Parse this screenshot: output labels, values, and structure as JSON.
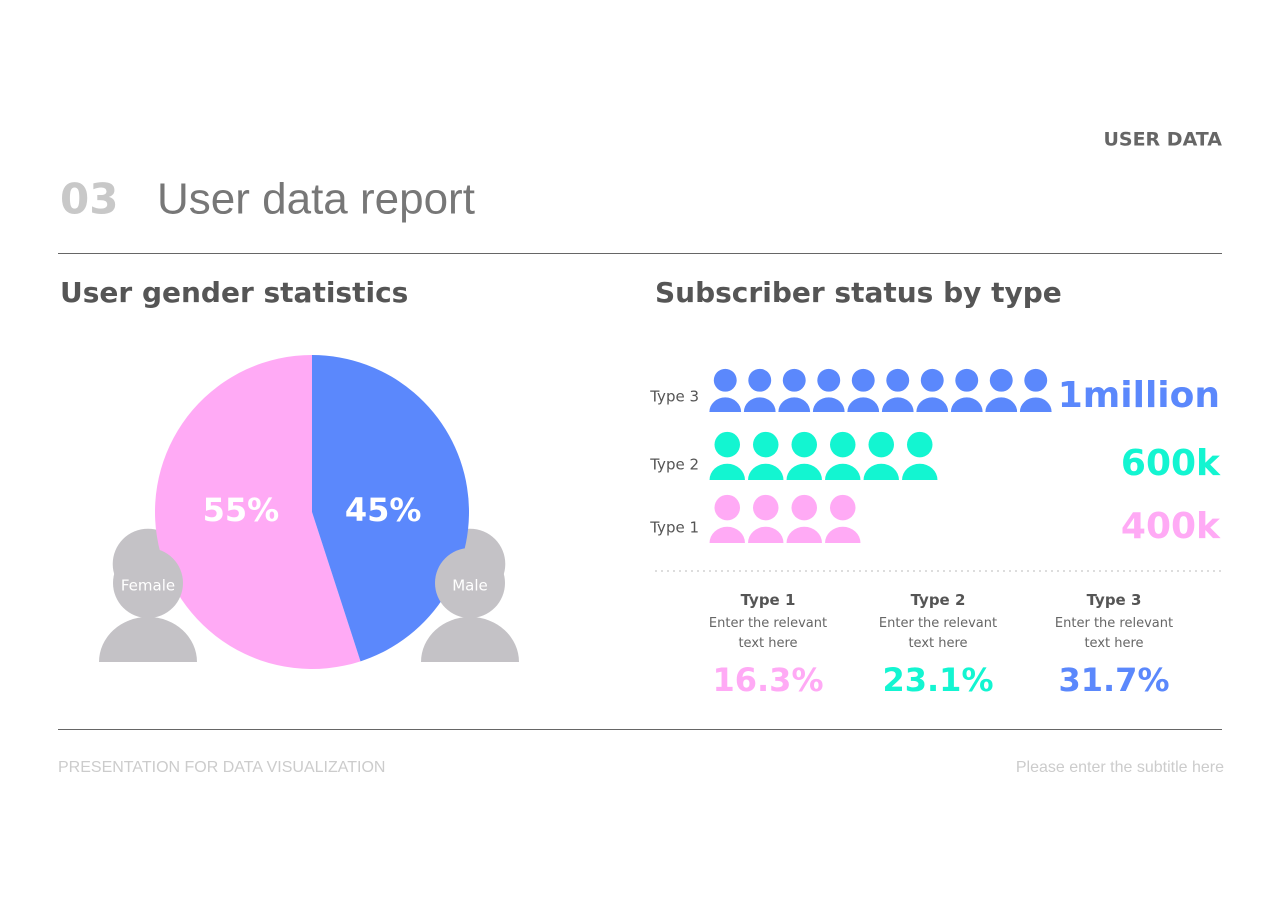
{
  "header": {
    "section": "USER DATA",
    "number": "03",
    "title": "User data report"
  },
  "chart_data": [
    {
      "type": "pie",
      "title": "User gender statistics",
      "categories": [
        "Female",
        "Male"
      ],
      "values": [
        55,
        45
      ],
      "value_labels": [
        "55%",
        "45%"
      ],
      "colors": [
        "#ffaaf5",
        "#5b88fc"
      ]
    },
    {
      "type": "pictogram",
      "title": "Subscriber status by type",
      "categories": [
        "Type 3",
        "Type 2",
        "Type 1"
      ],
      "values": [
        1000000,
        600000,
        400000
      ],
      "value_labels": [
        "1million",
        "600k",
        "400k"
      ],
      "colors": [
        "#5b88fc",
        "#13f5d1",
        "#ffaaf5"
      ]
    }
  ],
  "stats": [
    {
      "title": "Type 1",
      "text": "Enter the relevant text here",
      "value": "16.3%",
      "color": "#ffaaf5"
    },
    {
      "title": "Type 2",
      "text": "Enter the relevant text here",
      "value": "23.1%",
      "color": "#13f5d1"
    },
    {
      "title": "Type 3",
      "text": "Enter the relevant text here",
      "value": "31.7%",
      "color": "#5b88fc"
    }
  ],
  "footer": {
    "left": "PRESENTATION FOR DATA VISUALIZATION",
    "right": "Please enter the subtitle here"
  }
}
